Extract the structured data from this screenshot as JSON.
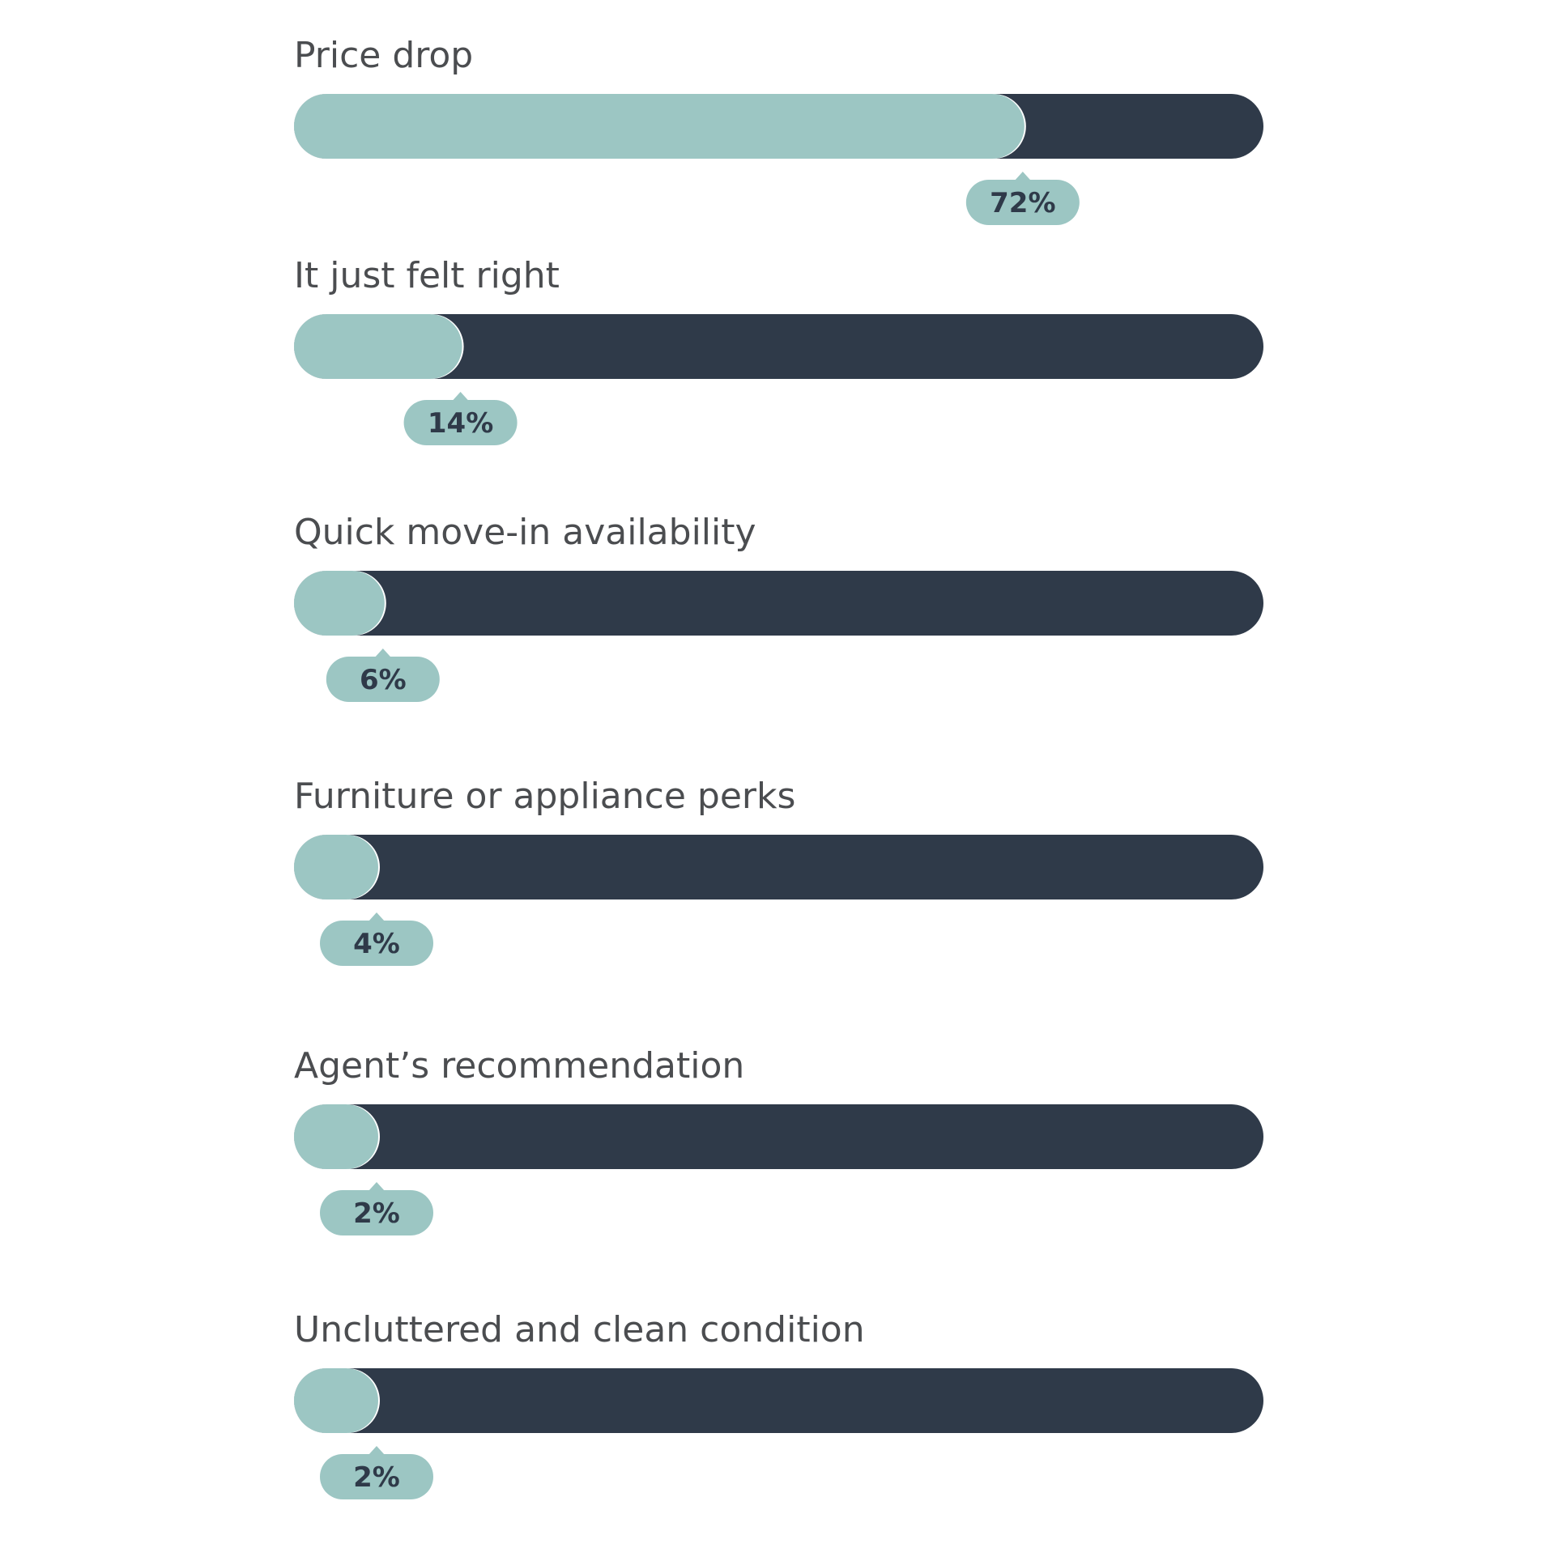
{
  "chart_data": {
    "type": "bar",
    "orientation": "horizontal",
    "categories": [
      "Price drop",
      "It just felt right",
      "Quick move-in availability",
      "Furniture or appliance perks",
      "Agent’s recommendation",
      "Uncluttered and clean condition"
    ],
    "values": [
      72,
      14,
      6,
      4,
      2,
      2
    ],
    "value_labels": [
      "72%",
      "14%",
      "6%",
      "4%",
      "2%",
      "2%"
    ],
    "unit": "%",
    "xlim": [
      0,
      100
    ],
    "title": "",
    "xlabel": "",
    "ylabel": "",
    "grid": false,
    "legend": "none",
    "colors": {
      "fill": "#9cc6c3",
      "track": "#2f3a49",
      "text": "#4b4d50",
      "value_text": "#2f3a49",
      "divider": "#ffffff"
    }
  }
}
